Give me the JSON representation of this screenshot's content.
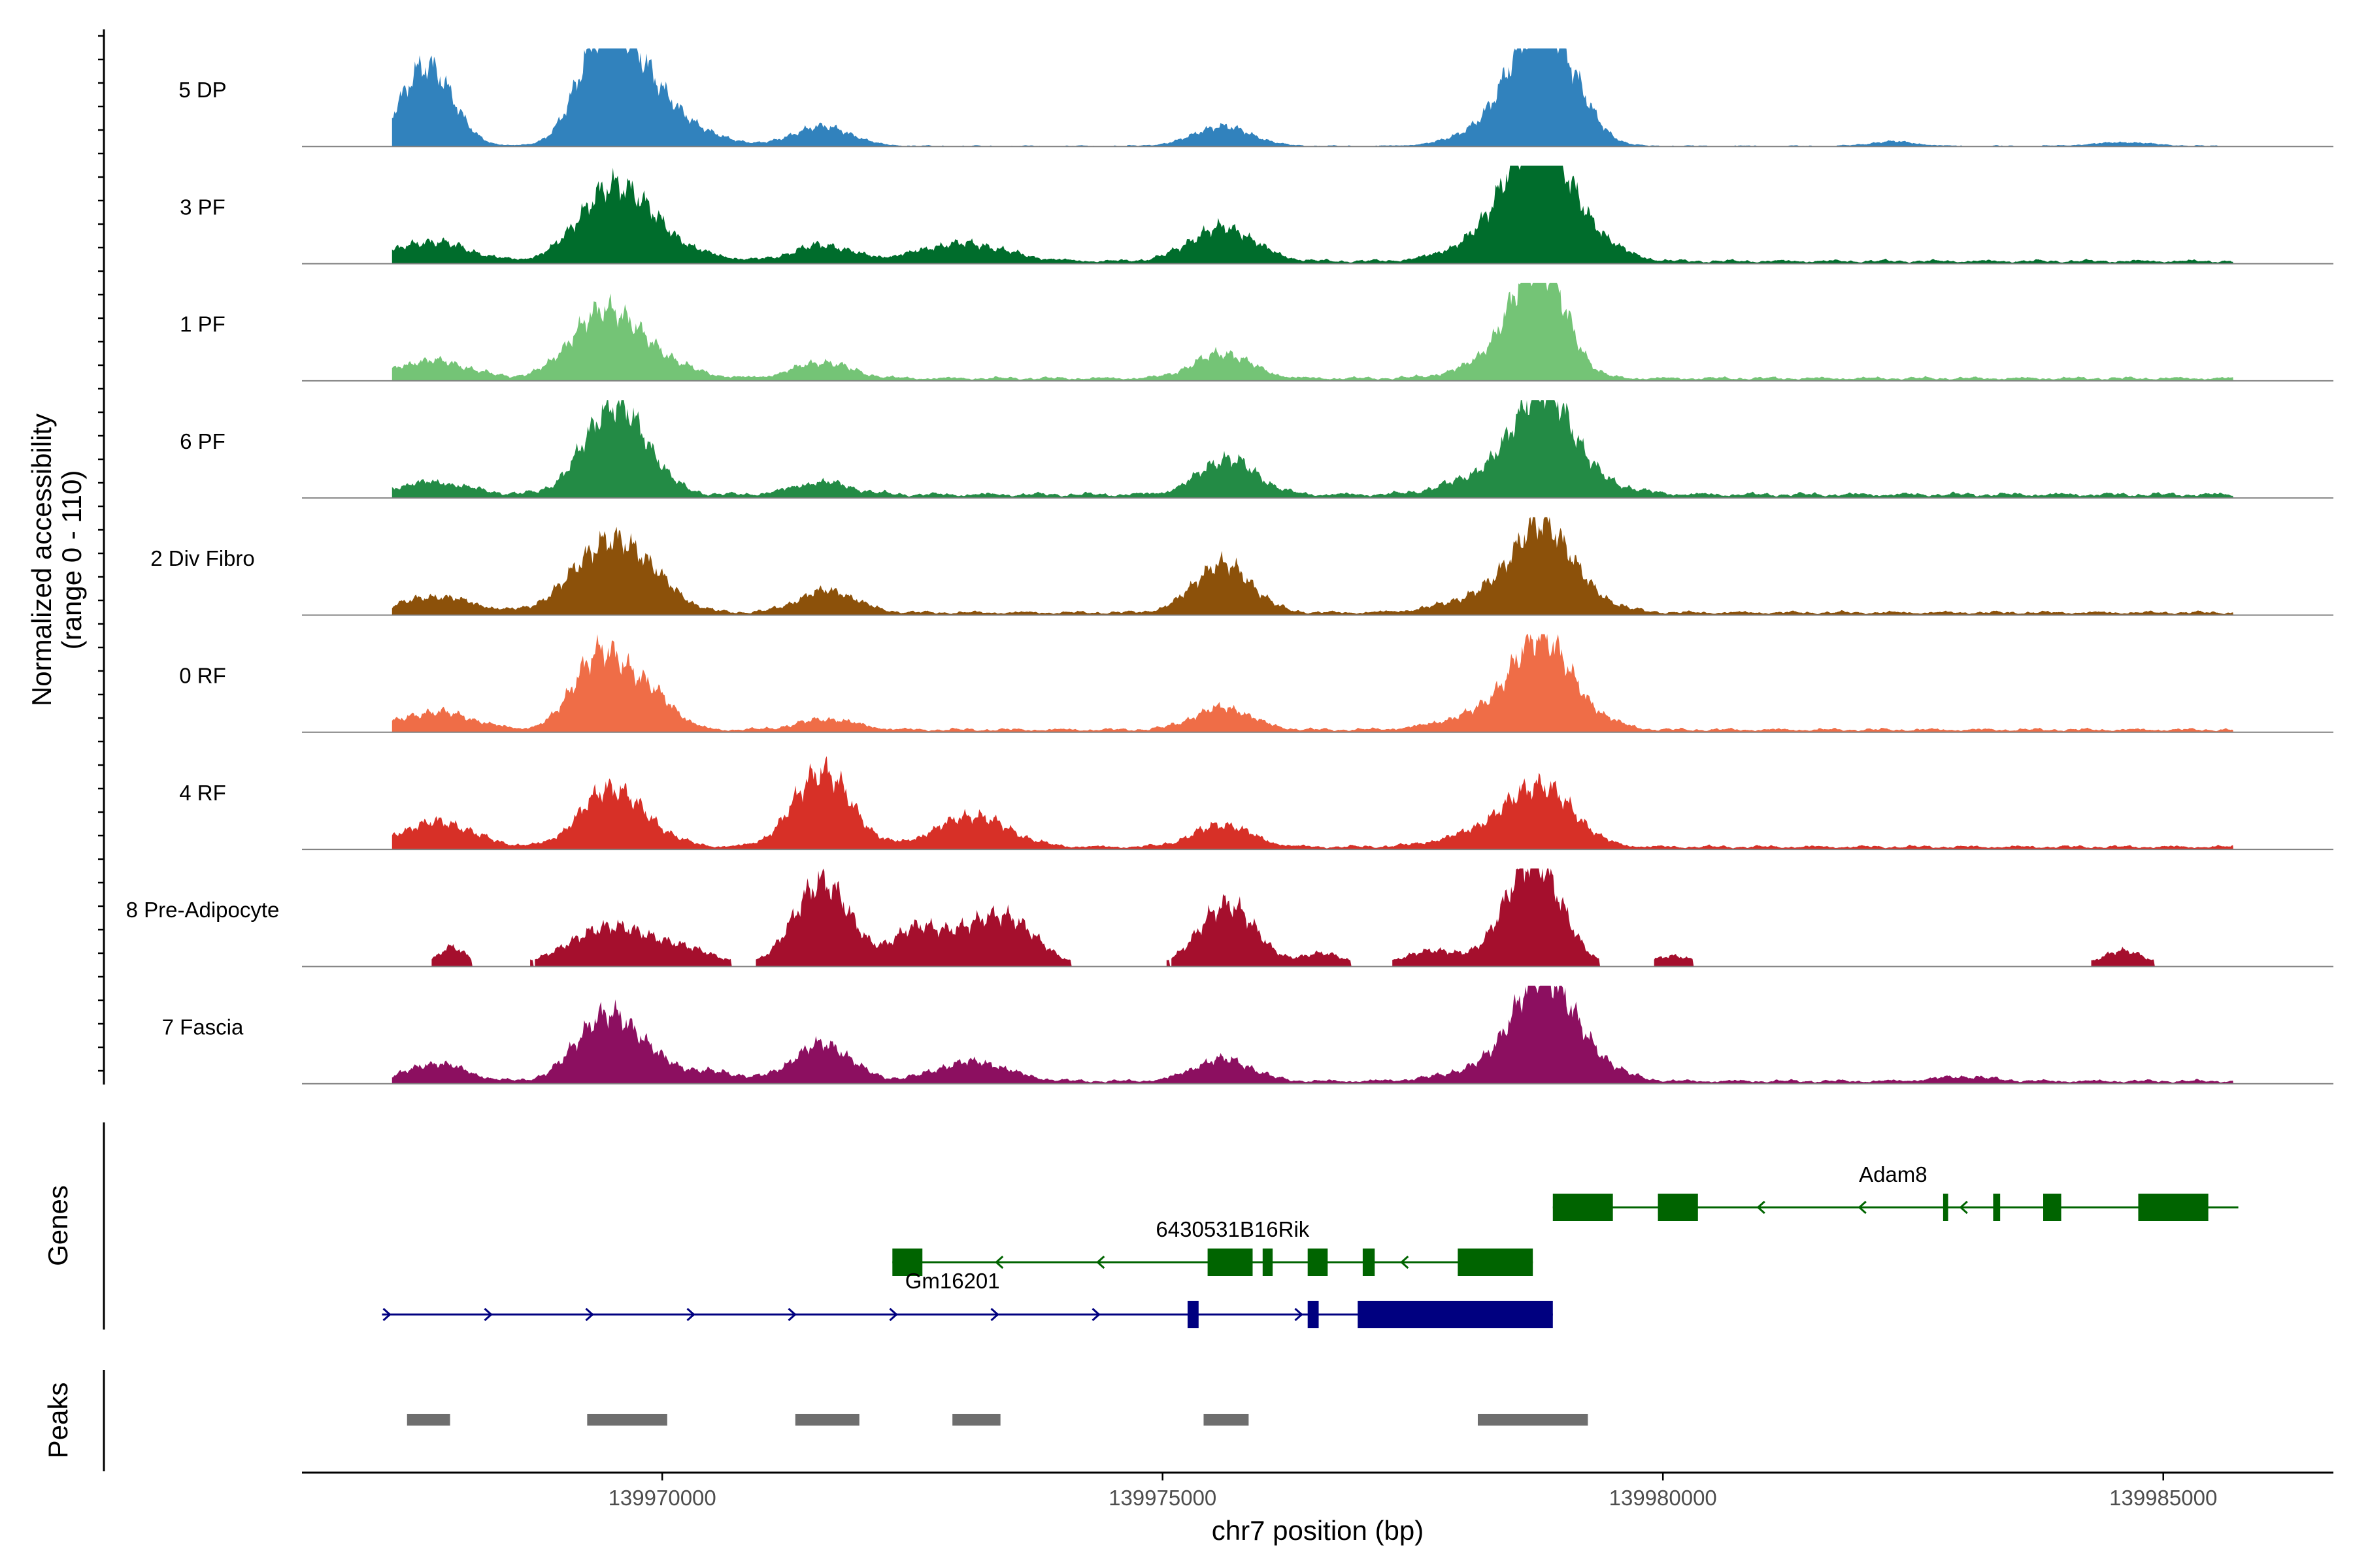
{
  "chart_data": {
    "type": "area",
    "title": "",
    "ylabel_line1": "Normalized accessibility",
    "ylabel_line2": "(range 0 - 110)",
    "ylim": [
      0,
      110
    ],
    "xlabel": "chr7 position (bp)",
    "xlim": [
      139966400,
      139986700
    ],
    "data_start": 139967300,
    "data_end": 139985700,
    "x_ticks": [
      139970000,
      139975000,
      139980000,
      139985000
    ],
    "x_tick_labels": [
      "139970000",
      "139975000",
      "139980000",
      "139985000"
    ],
    "series": [
      {
        "name": "5 DP",
        "color": "#3182bd",
        "threshold": 1,
        "baseline": 0.9,
        "peaks": [
          [
            139967650,
            90,
            36
          ],
          [
            139969400,
            105,
            36
          ],
          [
            139969750,
            45,
            40
          ],
          [
            139970000,
            28,
            60
          ],
          [
            139971600,
            22,
            40
          ],
          [
            139975600,
            22,
            40
          ],
          [
            139978100,
            10,
            40
          ],
          [
            139978650,
            40,
            45
          ],
          [
            139978800,
            105,
            40
          ],
          [
            139979200,
            15,
            30
          ],
          [
            139982300,
            5,
            30
          ],
          [
            139984600,
            4,
            40
          ]
        ]
      },
      {
        "name": "3 PF",
        "color": "#006d2c",
        "threshold": 1,
        "baseline": 3,
        "peaks": [
          [
            139967700,
            22,
            50
          ],
          [
            139969450,
            70,
            45
          ],
          [
            139969800,
            25,
            40
          ],
          [
            139970200,
            10,
            50
          ],
          [
            139971600,
            18,
            40
          ],
          [
            139973000,
            20,
            60
          ],
          [
            139975600,
            38,
            45
          ],
          [
            139978200,
            20,
            50
          ],
          [
            139978600,
            45,
            40
          ],
          [
            139978800,
            100,
            40
          ],
          [
            139979300,
            22,
            40
          ]
        ]
      },
      {
        "name": "1 PF",
        "color": "#74c476",
        "threshold": 1,
        "baseline": 3,
        "peaks": [
          [
            139967700,
            20,
            50
          ],
          [
            139969400,
            70,
            45
          ],
          [
            139969900,
            20,
            50
          ],
          [
            139971600,
            18,
            40
          ],
          [
            139975600,
            28,
            40
          ],
          [
            139978300,
            15,
            50
          ],
          [
            139978650,
            40,
            40
          ],
          [
            139978800,
            90,
            35
          ]
        ]
      },
      {
        "name": "6 PF",
        "color": "#238b45",
        "threshold": 1,
        "baseline": 4,
        "peaks": [
          [
            139967700,
            14,
            50
          ],
          [
            139969450,
            70,
            40
          ],
          [
            139969700,
            40,
            40
          ],
          [
            139971600,
            14,
            40
          ],
          [
            139975650,
            40,
            40
          ],
          [
            139978200,
            20,
            50
          ],
          [
            139978800,
            110,
            40
          ],
          [
            139979300,
            12,
            50
          ]
        ]
      },
      {
        "name": "2 Div Fibro",
        "color": "#8c510a",
        "threshold": 1,
        "baseline": 3,
        "peaks": [
          [
            139967750,
            18,
            50
          ],
          [
            139969450,
            75,
            50
          ],
          [
            139969900,
            20,
            40
          ],
          [
            139971650,
            25,
            40
          ],
          [
            139975600,
            55,
            40
          ],
          [
            139978300,
            20,
            60
          ],
          [
            139978800,
            88,
            40
          ],
          [
            139979300,
            10,
            40
          ]
        ]
      },
      {
        "name": "0 RF",
        "color": "#ef6d47",
        "threshold": 1,
        "baseline": 3,
        "peaks": [
          [
            139967750,
            20,
            50
          ],
          [
            139969250,
            18,
            30
          ],
          [
            139969450,
            75,
            40
          ],
          [
            139969950,
            28,
            30
          ],
          [
            139971650,
            12,
            40
          ],
          [
            139975600,
            25,
            40
          ],
          [
            139978300,
            20,
            60
          ],
          [
            139978800,
            95,
            40
          ],
          [
            139979400,
            8,
            30
          ]
        ]
      },
      {
        "name": "4 RF",
        "color": "#d73027",
        "threshold": 1,
        "baseline": 3,
        "peaks": [
          [
            139967750,
            28,
            50
          ],
          [
            139969450,
            60,
            40
          ],
          [
            139969850,
            15,
            40
          ],
          [
            139971600,
            85,
            40
          ],
          [
            139973100,
            35,
            50
          ],
          [
            139975600,
            25,
            40
          ],
          [
            139978300,
            18,
            60
          ],
          [
            139978800,
            60,
            45
          ]
        ]
      },
      {
        "name": "8 Pre-Adipocyte",
        "color": "#a50f2d",
        "threshold": 7,
        "baseline": 0,
        "peaks": [
          [
            139967900,
            22,
            20
          ],
          [
            139969500,
            45,
            60
          ],
          [
            139970300,
            14,
            40
          ],
          [
            139971600,
            95,
            40
          ],
          [
            139972500,
            30,
            30
          ],
          [
            139973100,
            38,
            60
          ],
          [
            139973500,
            30,
            40
          ],
          [
            139975650,
            70,
            40
          ],
          [
            139976600,
            15,
            30
          ],
          [
            139977700,
            18,
            40
          ],
          [
            139978700,
            120,
            40
          ],
          [
            139980100,
            12,
            30
          ],
          [
            139984600,
            18,
            30
          ]
        ]
      },
      {
        "name": "7 Fascia",
        "color": "#8c0f60",
        "threshold": 1,
        "baseline": 3,
        "peaks": [
          [
            139967750,
            20,
            40
          ],
          [
            139969400,
            65,
            40
          ],
          [
            139969800,
            25,
            40
          ],
          [
            139970500,
            10,
            40
          ],
          [
            139971600,
            42,
            40
          ],
          [
            139973100,
            22,
            50
          ],
          [
            139975600,
            25,
            40
          ],
          [
            139978300,
            15,
            60
          ],
          [
            139978800,
            110,
            40
          ],
          [
            139979300,
            18,
            40
          ],
          [
            139983000,
            5,
            40
          ]
        ]
      }
    ],
    "genes": [
      {
        "name": "Adam8",
        "color": "#006400",
        "strand": "-",
        "row": 0,
        "start": 139978900,
        "end": 139985750,
        "exons": [
          [
            139978900,
            139979500
          ],
          [
            139979950,
            139980350
          ],
          [
            139982800,
            139982850
          ],
          [
            139983300,
            139983370
          ],
          [
            139983800,
            139983980
          ],
          [
            139984750,
            139985450
          ]
        ]
      },
      {
        "name": "6430531B16Rik",
        "color": "#006400",
        "strand": "-",
        "row": 1,
        "start": 139972300,
        "end": 139978700,
        "exons": [
          [
            139972300,
            139972600
          ],
          [
            139975450,
            139975900
          ],
          [
            139976000,
            139976100
          ],
          [
            139976450,
            139976650
          ],
          [
            139977000,
            139977120
          ],
          [
            139977950,
            139978700
          ]
        ]
      },
      {
        "name": "Gm16201",
        "color": "#000080",
        "strand": "+",
        "row": 2,
        "start": 139967200,
        "end": 139978900,
        "exons": [
          [
            139975250,
            139975360
          ],
          [
            139976450,
            139976560
          ],
          [
            139976950,
            139978900
          ]
        ]
      }
    ],
    "peak_regions": [
      [
        139967450,
        139967880
      ],
      [
        139969250,
        139970050
      ],
      [
        139971330,
        139971970
      ],
      [
        139972900,
        139973380
      ],
      [
        139975410,
        139975860
      ],
      [
        139978150,
        139979250
      ]
    ],
    "panel_labels": {
      "genes": "Genes",
      "peaks": "Peaks"
    }
  },
  "colors": {
    "baseline": "#808080",
    "axis": "#000000",
    "peak_region": "#6e6e6e",
    "tick_label": "#4d4d4d"
  }
}
